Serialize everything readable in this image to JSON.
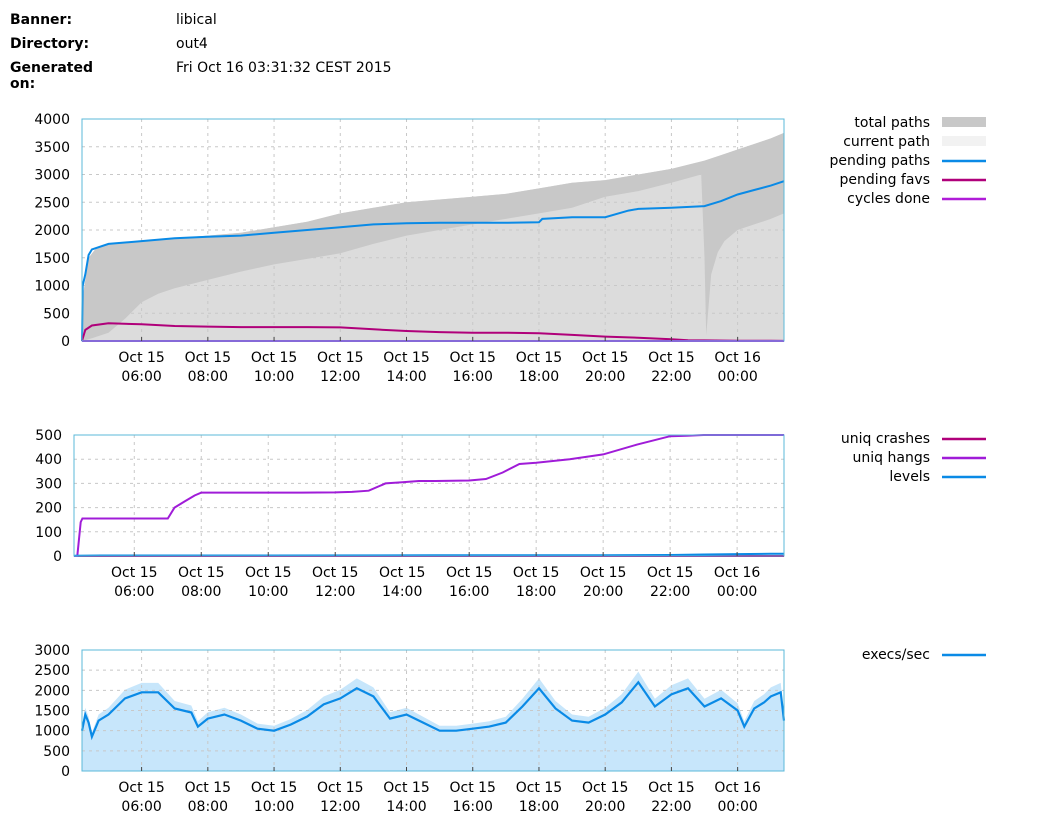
{
  "header": {
    "rows": [
      {
        "label": "Banner:",
        "value": "libical"
      },
      {
        "label": "Directory:",
        "value": "out4"
      },
      {
        "label": "Generated on:",
        "value": "Fri Oct 16 03:31:32 CEST 2015"
      }
    ]
  },
  "colors": {
    "axis": "#5bb8d8",
    "grid": "#c8c8c8",
    "total_paths": "#c8c8c8",
    "current_path": "#f2f2f2",
    "pending_paths": "#0a8ae6",
    "pending_favs": "#b0007a",
    "cycles_done": "#b01cd8",
    "uniq_crashes": "#b0007a",
    "uniq_hangs": "#a01cd8",
    "levels": "#0a8ae6",
    "execs_line": "#0a8ae6",
    "execs_fill": "#c7e6fb"
  },
  "chart_data": [
    {
      "type": "area",
      "title": "",
      "xlabel": "",
      "ylabel": "",
      "xlim": [
        4.2,
        25.4
      ],
      "ylim": [
        0,
        4000
      ],
      "yticks": [
        "0",
        "500",
        "1000",
        "1500",
        "2000",
        "2500",
        "3000",
        "3500",
        "4000"
      ],
      "ytick_values": [
        0,
        500,
        1000,
        1500,
        2000,
        2500,
        3000,
        3500,
        4000
      ],
      "xtick_hours": [
        6,
        8,
        10,
        12,
        14,
        16,
        18,
        20,
        22,
        24
      ],
      "xtick_dates": [
        "Oct 15",
        "Oct 15",
        "Oct 15",
        "Oct 15",
        "Oct 15",
        "Oct 15",
        "Oct 15",
        "Oct 15",
        "Oct 15",
        "Oct 16"
      ],
      "xtick_times": [
        "06:00",
        "08:00",
        "10:00",
        "12:00",
        "14:00",
        "16:00",
        "18:00",
        "20:00",
        "22:00",
        "00:00"
      ],
      "legend": [
        "total paths",
        "current path",
        "pending paths",
        "pending favs",
        "cycles done"
      ],
      "series": [
        {
          "name": "total paths",
          "kind": "band_top",
          "x": [
            4.2,
            4.25,
            4.4,
            4.6,
            5,
            6,
            7,
            8,
            9,
            10,
            11,
            12,
            13,
            14,
            15,
            16,
            17,
            18,
            19,
            20,
            21,
            22,
            23,
            23.5,
            24,
            24.5,
            25,
            25.4
          ],
          "values": [
            0,
            900,
            1500,
            1650,
            1750,
            1800,
            1850,
            1900,
            1950,
            2050,
            2150,
            2300,
            2400,
            2500,
            2550,
            2600,
            2650,
            2750,
            2850,
            2900,
            3000,
            3100,
            3250,
            3350,
            3450,
            3550,
            3650,
            3750
          ]
        },
        {
          "name": "current path",
          "kind": "band_bottom",
          "x": [
            4.2,
            4.5,
            5,
            5.5,
            6,
            6.5,
            7,
            8,
            9,
            10,
            11,
            12,
            13,
            14,
            15,
            16,
            17,
            18,
            19,
            20,
            21,
            22,
            22.9,
            23.0,
            23.05,
            23.2,
            23.4,
            23.6,
            24,
            24.5,
            25,
            25.4
          ],
          "values": [
            0,
            50,
            150,
            400,
            700,
            850,
            950,
            1100,
            1250,
            1380,
            1480,
            1580,
            1750,
            1900,
            2000,
            2100,
            2200,
            2300,
            2400,
            2600,
            2700,
            2850,
            3000,
            1500,
            100,
            1200,
            1600,
            1800,
            2000,
            2100,
            2200,
            2300
          ]
        },
        {
          "name": "pending paths",
          "x": [
            4.2,
            4.22,
            4.3,
            4.4,
            4.5,
            5,
            6,
            7,
            8,
            9,
            10,
            11,
            12,
            13,
            14,
            15,
            16,
            17,
            18,
            18.1,
            19,
            20,
            20.7,
            21,
            22,
            23,
            23.5,
            24,
            24.5,
            25,
            25.4
          ],
          "values": [
            0,
            1000,
            1200,
            1550,
            1650,
            1750,
            1800,
            1850,
            1880,
            1900,
            1950,
            2000,
            2050,
            2100,
            2120,
            2130,
            2130,
            2130,
            2140,
            2200,
            2230,
            2230,
            2350,
            2380,
            2400,
            2430,
            2520,
            2640,
            2720,
            2800,
            2880
          ]
        },
        {
          "name": "pending favs",
          "x": [
            4.2,
            4.3,
            4.5,
            5,
            6,
            7,
            8,
            9,
            10,
            11,
            12,
            13,
            14,
            15,
            16,
            17,
            18,
            19,
            20,
            21,
            22,
            22.5,
            23,
            24,
            25,
            25.4
          ],
          "values": [
            0,
            200,
            280,
            320,
            300,
            270,
            260,
            250,
            250,
            250,
            245,
            210,
            180,
            160,
            150,
            150,
            140,
            110,
            80,
            60,
            30,
            15,
            10,
            5,
            3,
            2
          ]
        },
        {
          "name": "cycles done",
          "x": [
            4.2,
            25.4
          ],
          "values": [
            0,
            0
          ]
        }
      ]
    },
    {
      "type": "line",
      "title": "",
      "xlabel": "",
      "ylabel": "",
      "xlim": [
        4.2,
        25.4
      ],
      "ylim": [
        0,
        500
      ],
      "yticks": [
        "0",
        "100",
        "200",
        "300",
        "400",
        "500"
      ],
      "ytick_values": [
        0,
        100,
        200,
        300,
        400,
        500
      ],
      "xtick_hours": [
        6,
        8,
        10,
        12,
        14,
        16,
        18,
        20,
        22,
        24
      ],
      "xtick_dates": [
        "Oct 15",
        "Oct 15",
        "Oct 15",
        "Oct 15",
        "Oct 15",
        "Oct 15",
        "Oct 15",
        "Oct 15",
        "Oct 15",
        "Oct 16"
      ],
      "xtick_times": [
        "06:00",
        "08:00",
        "10:00",
        "12:00",
        "14:00",
        "16:00",
        "18:00",
        "20:00",
        "22:00",
        "00:00"
      ],
      "legend": [
        "uniq crashes",
        "uniq hangs",
        "levels"
      ],
      "series": [
        {
          "name": "uniq crashes",
          "x": [
            4.2,
            25.4
          ],
          "values": [
            0,
            0
          ]
        },
        {
          "name": "uniq hangs",
          "x": [
            4.2,
            4.3,
            4.4,
            4.45,
            7.0,
            7.2,
            7.5,
            7.8,
            8.0,
            9,
            10,
            11,
            12,
            12.5,
            13,
            13.5,
            14,
            14.5,
            15,
            16,
            16.5,
            17,
            17.5,
            18,
            19,
            20,
            21,
            22,
            22.5,
            23,
            24,
            25,
            25.4
          ],
          "values": [
            0,
            0,
            140,
            155,
            155,
            200,
            225,
            250,
            262,
            262,
            262,
            262,
            263,
            265,
            270,
            300,
            305,
            310,
            310,
            312,
            318,
            345,
            380,
            385,
            400,
            420,
            460,
            495,
            497,
            500,
            500,
            500,
            500
          ]
        },
        {
          "name": "levels",
          "x": [
            4.2,
            5,
            10,
            15,
            20,
            22,
            23,
            24,
            25,
            25.4
          ],
          "values": [
            1,
            2,
            2,
            3,
            3,
            4,
            6,
            8,
            9,
            9
          ]
        }
      ]
    },
    {
      "type": "area",
      "title": "",
      "xlabel": "",
      "ylabel": "",
      "xlim": [
        4.2,
        25.4
      ],
      "ylim": [
        0,
        3000
      ],
      "yticks": [
        "0",
        "500",
        "1000",
        "1500",
        "2000",
        "2500",
        "3000"
      ],
      "ytick_values": [
        0,
        500,
        1000,
        1500,
        2000,
        2500,
        3000
      ],
      "xtick_hours": [
        6,
        8,
        10,
        12,
        14,
        16,
        18,
        20,
        22,
        24
      ],
      "xtick_dates": [
        "Oct 15",
        "Oct 15",
        "Oct 15",
        "Oct 15",
        "Oct 15",
        "Oct 15",
        "Oct 15",
        "Oct 15",
        "Oct 15",
        "Oct 16"
      ],
      "xtick_times": [
        "06:00",
        "08:00",
        "10:00",
        "12:00",
        "14:00",
        "16:00",
        "18:00",
        "20:00",
        "22:00",
        "00:00"
      ],
      "legend": [
        "execs/sec"
      ],
      "series": [
        {
          "name": "execs/sec",
          "x": [
            4.2,
            4.3,
            4.4,
            4.5,
            4.7,
            5,
            5.5,
            6,
            6.5,
            7,
            7.5,
            7.7,
            8,
            8.5,
            9,
            9.5,
            10,
            10.5,
            11,
            11.5,
            12,
            12.5,
            13,
            13.5,
            14,
            14.5,
            15,
            15.5,
            16,
            16.5,
            17,
            17.5,
            18,
            18.5,
            19,
            19.5,
            20,
            20.5,
            21,
            21.5,
            22,
            22.5,
            23,
            23.5,
            24,
            24.2,
            24.5,
            24.8,
            25,
            25.3,
            25.4
          ],
          "values": [
            1000,
            1400,
            1200,
            850,
            1250,
            1400,
            1800,
            1950,
            1950,
            1550,
            1450,
            1100,
            1300,
            1400,
            1250,
            1050,
            1000,
            1150,
            1350,
            1650,
            1800,
            2050,
            1850,
            1300,
            1400,
            1200,
            1000,
            1000,
            1050,
            1100,
            1200,
            1600,
            2050,
            1550,
            1250,
            1200,
            1400,
            1700,
            2200,
            1600,
            1900,
            2050,
            1600,
            1800,
            1500,
            1100,
            1550,
            1700,
            1850,
            1950,
            1250
          ]
        }
      ]
    }
  ]
}
